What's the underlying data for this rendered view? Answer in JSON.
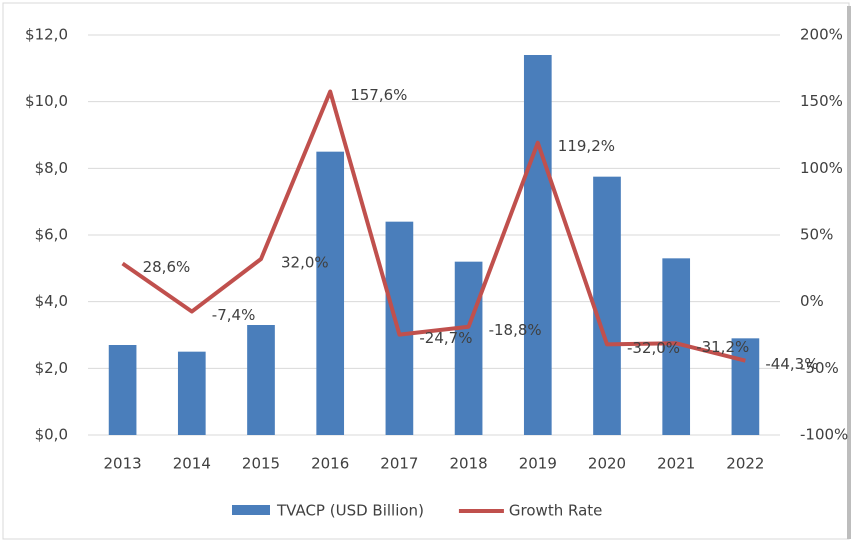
{
  "chart_data": {
    "type": "bar-line",
    "categories": [
      "2013",
      "2014",
      "2015",
      "2016",
      "2017",
      "2018",
      "2019",
      "2020",
      "2021",
      "2022"
    ],
    "series": [
      {
        "name": "TVACP (USD Billion)",
        "type": "bar",
        "color": "#4a7ebb",
        "values": [
          2.7,
          2.5,
          3.3,
          8.5,
          6.4,
          5.2,
          11.4,
          7.75,
          5.3,
          2.9
        ]
      },
      {
        "name": "Growth Rate",
        "type": "line",
        "axis": "y2",
        "color": "#c0504d",
        "values": [
          28.6,
          -7.4,
          32.0,
          157.6,
          -24.7,
          -18.8,
          119.2,
          -32.0,
          -31.2,
          -44.3
        ],
        "value_labels": [
          "28,6%",
          "-7,4%",
          "32,0%",
          "157,6%",
          "-24,7%",
          "-18,8%",
          "119,2%",
          "-32,0%",
          "-31,2%",
          "-44,3%"
        ]
      }
    ],
    "ylim": [
      0,
      12
    ],
    "yticks": [
      {
        "value": 0,
        "label": "$0,0"
      },
      {
        "value": 2,
        "label": "$2,0"
      },
      {
        "value": 4,
        "label": "$4,0"
      },
      {
        "value": 6,
        "label": "$6,0"
      },
      {
        "value": 8,
        "label": "$8,0"
      },
      {
        "value": 10,
        "label": "$10,0"
      },
      {
        "value": 12,
        "label": "$12,0"
      }
    ],
    "y2lim": [
      -100,
      200
    ],
    "y2ticks": [
      {
        "value": -100,
        "label": "-100%"
      },
      {
        "value": -50,
        "label": "-50%"
      },
      {
        "value": 0,
        "label": "0%"
      },
      {
        "value": 50,
        "label": "50%"
      },
      {
        "value": 100,
        "label": "100%"
      },
      {
        "value": 150,
        "label": "150%"
      },
      {
        "value": 200,
        "label": "200%"
      }
    ],
    "grid": true,
    "legend": "bottom"
  }
}
